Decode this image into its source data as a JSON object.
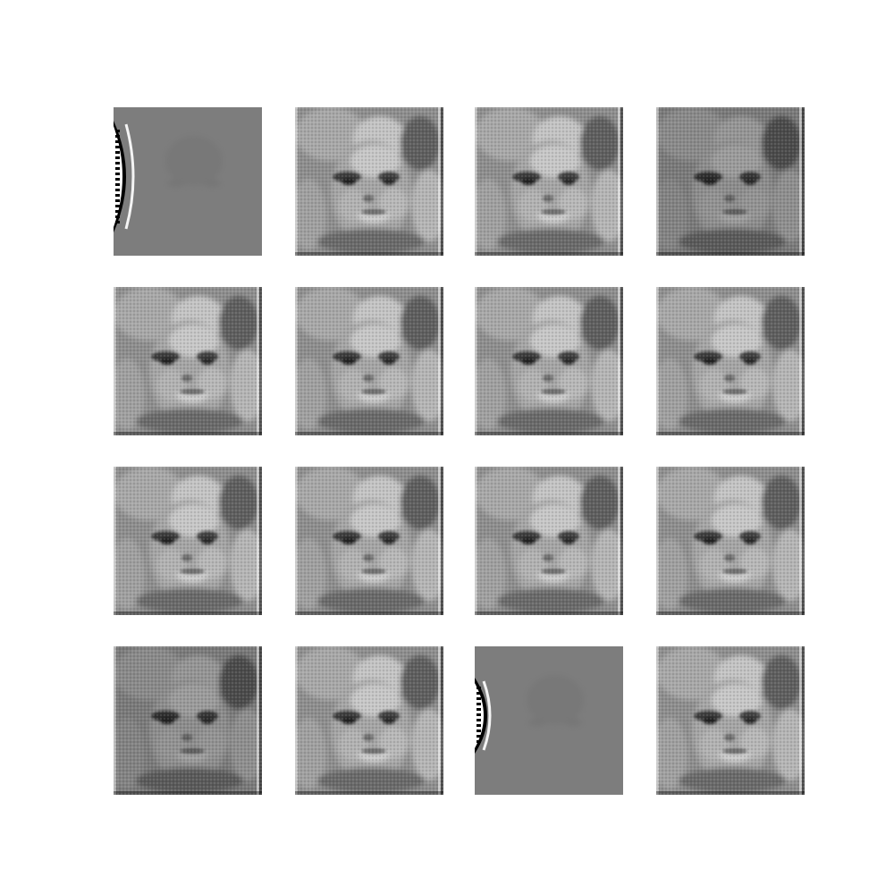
{
  "figure": {
    "rows": 4,
    "cols": 4,
    "background_color": "#ffffff",
    "samples": [
      {
        "variant": "collapsed"
      },
      {
        "variant": "face"
      },
      {
        "variant": "face"
      },
      {
        "variant": "face-dark"
      },
      {
        "variant": "face"
      },
      {
        "variant": "face"
      },
      {
        "variant": "face"
      },
      {
        "variant": "face"
      },
      {
        "variant": "face"
      },
      {
        "variant": "face"
      },
      {
        "variant": "face"
      },
      {
        "variant": "face"
      },
      {
        "variant": "face-dark"
      },
      {
        "variant": "face"
      },
      {
        "variant": "collapsed-small"
      },
      {
        "variant": "face"
      }
    ]
  }
}
